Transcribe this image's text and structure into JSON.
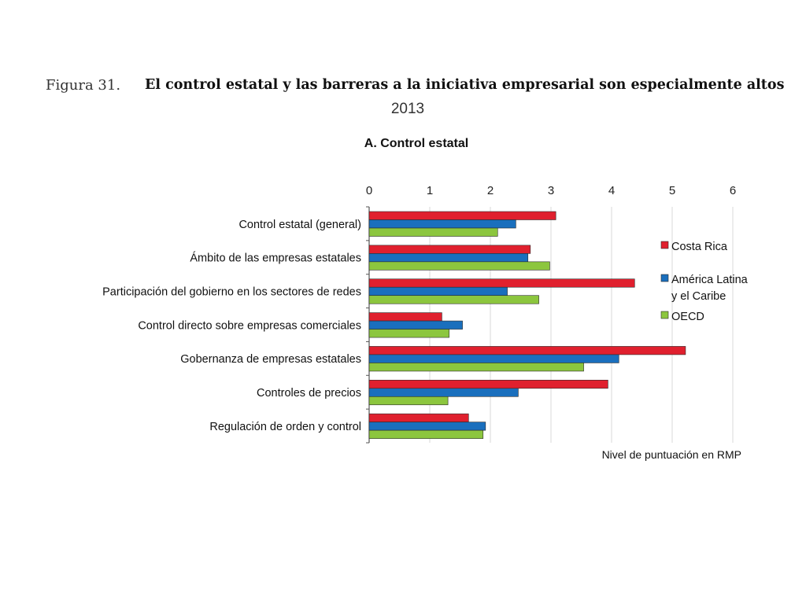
{
  "header": {
    "figure_label": "Figura 31.",
    "title": "El control estatal y las barreras a la iniciativa empresarial son especialmente altos",
    "year": "2013"
  },
  "chart_data": {
    "type": "bar",
    "orientation": "horizontal",
    "title": "A. Control estatal",
    "xlabel": "Nivel de puntuación en RMP",
    "ylabel": "",
    "xlim": [
      0,
      6
    ],
    "xticks": [
      0,
      1,
      2,
      3,
      4,
      5,
      6
    ],
    "grid": true,
    "legend_position": "right",
    "categories": [
      "Control estatal (general)",
      "Ámbito de las empresas estatales",
      "Participación del gobierno en los sectores de redes",
      "Control directo sobre empresas comerciales",
      "Gobernanza de empresas estatales",
      "Controles de precios",
      "Regulación de orden y control"
    ],
    "series": [
      {
        "name": "Costa Rica",
        "color": "#e0202e",
        "values": [
          3.08,
          2.66,
          4.38,
          1.2,
          5.22,
          3.94,
          1.64
        ]
      },
      {
        "name": "América Latina y el Caribe",
        "color": "#1a6fbd",
        "values": [
          2.42,
          2.62,
          2.28,
          1.54,
          4.12,
          2.46,
          1.92
        ]
      },
      {
        "name": "OECD",
        "color": "#8cc63e",
        "values": [
          2.12,
          2.98,
          2.8,
          1.32,
          3.54,
          1.3,
          1.88
        ]
      }
    ],
    "legend_lines": [
      [
        "Costa Rica"
      ],
      [
        "América Latina",
        "y el Caribe"
      ],
      [
        "OECD"
      ]
    ]
  }
}
